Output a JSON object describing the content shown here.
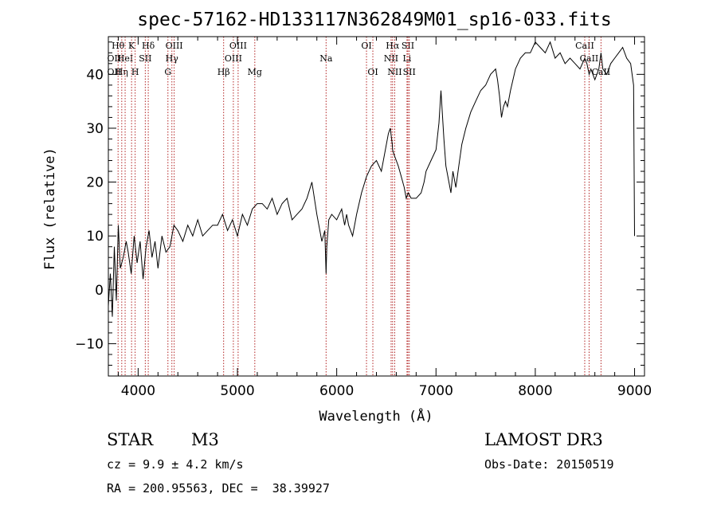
{
  "chart_data": {
    "type": "line",
    "title": "spec-57162-HD133117N362849M01_sp16-033.fits",
    "xlabel": "Wavelength (Å)",
    "ylabel": "Flux (relative)",
    "xlim": [
      3700,
      9100
    ],
    "ylim": [
      -16,
      47
    ],
    "x_ticks": [
      4000,
      5000,
      6000,
      7000,
      8000,
      9000
    ],
    "y_ticks": [
      -10,
      0,
      10,
      20,
      30,
      40
    ],
    "line_color": "#000000",
    "marker_color": "#b22222",
    "series": [
      {
        "name": "flux",
        "x": [
          3700,
          3720,
          3740,
          3760,
          3780,
          3800,
          3820,
          3850,
          3880,
          3900,
          3930,
          3960,
          3990,
          4020,
          4050,
          4080,
          4110,
          4140,
          4170,
          4200,
          4240,
          4280,
          4320,
          4360,
          4400,
          4450,
          4500,
          4550,
          4600,
          4650,
          4700,
          4750,
          4800,
          4850,
          4900,
          4950,
          5000,
          5050,
          5100,
          5150,
          5200,
          5250,
          5300,
          5350,
          5400,
          5450,
          5500,
          5550,
          5600,
          5650,
          5700,
          5750,
          5800,
          5850,
          5880,
          5893,
          5900,
          5920,
          5950,
          6000,
          6050,
          6080,
          6100,
          6120,
          6140,
          6160,
          6200,
          6250,
          6300,
          6350,
          6400,
          6450,
          6500,
          6520,
          6540,
          6560,
          6563,
          6580,
          6600,
          6620,
          6650,
          6680,
          6700,
          6720,
          6750,
          6800,
          6850,
          6880,
          6900,
          6950,
          7000,
          7030,
          7050,
          7080,
          7100,
          7130,
          7150,
          7170,
          7200,
          7230,
          7260,
          7300,
          7350,
          7400,
          7450,
          7500,
          7550,
          7600,
          7620,
          7640,
          7660,
          7680,
          7700,
          7720,
          7750,
          7800,
          7850,
          7900,
          7950,
          8000,
          8050,
          8100,
          8150,
          8200,
          8250,
          8300,
          8350,
          8400,
          8450,
          8498,
          8520,
          8542,
          8560,
          8600,
          8640,
          8662,
          8680,
          8720,
          8760,
          8800,
          8840,
          8880,
          8920,
          8960,
          8990,
          9000
        ],
        "values": [
          -3,
          3,
          -5,
          8,
          -2,
          12,
          4,
          6,
          9,
          7,
          3,
          10,
          5,
          9,
          2,
          8,
          11,
          6,
          9,
          4,
          10,
          7,
          8,
          12,
          11,
          9,
          12,
          10,
          13,
          10,
          11,
          12,
          12,
          14,
          11,
          13,
          10,
          14,
          12,
          15,
          16,
          16,
          15,
          17,
          14,
          16,
          17,
          13,
          14,
          15,
          17,
          20,
          14,
          9,
          11,
          3,
          8,
          13,
          14,
          13,
          15,
          12,
          14,
          12,
          11,
          10,
          14,
          18,
          21,
          23,
          24,
          22,
          27,
          29,
          30,
          27,
          26,
          25,
          24,
          23,
          21,
          19,
          17,
          18,
          17,
          17,
          18,
          20,
          22,
          24,
          26,
          31,
          37,
          28,
          23,
          20,
          18,
          22,
          19,
          23,
          27,
          30,
          33,
          35,
          37,
          38,
          40,
          41,
          39,
          36,
          32,
          34,
          35,
          34,
          37,
          41,
          43,
          44,
          44,
          46,
          45,
          44,
          46,
          43,
          44,
          42,
          43,
          42,
          41,
          43,
          42,
          40,
          41,
          39,
          41,
          44,
          41,
          40,
          42,
          43,
          44,
          45,
          43,
          42,
          38,
          10
        ]
      }
    ],
    "line_markers": [
      {
        "wl": 3798,
        "label": "Hθ",
        "row": 0
      },
      {
        "wl": 3835,
        "label": "Hη",
        "row": 2
      },
      {
        "wl": 3869,
        "label": "HeI",
        "row": 1
      },
      {
        "wl": 3934,
        "label": "K",
        "row": 0
      },
      {
        "wl": 3970,
        "label": "H",
        "row": 2
      },
      {
        "wl": 4072,
        "label": "SII",
        "row": 1
      },
      {
        "wl": 4102,
        "label": "Hδ",
        "row": 0
      },
      {
        "wl": 4300,
        "label": "G",
        "row": 2
      },
      {
        "wl": 4340,
        "label": "Hγ",
        "row": 1
      },
      {
        "wl": 4363,
        "label": "OIII",
        "row": 0
      },
      {
        "wl": 4861,
        "label": "Hβ",
        "row": 2
      },
      {
        "wl": 4959,
        "label": "OIII",
        "row": 1
      },
      {
        "wl": 5007,
        "label": "OIII",
        "row": 0
      },
      {
        "wl": 5175,
        "label": "Mg",
        "row": 2
      },
      {
        "wl": 5893,
        "label": "Na",
        "row": 1
      },
      {
        "wl": 6300,
        "label": "OI",
        "row": 0
      },
      {
        "wl": 6364,
        "label": "OI",
        "row": 2
      },
      {
        "wl": 6548,
        "label": "NII",
        "row": 1
      },
      {
        "wl": 6563,
        "label": "Hα",
        "row": 0
      },
      {
        "wl": 6584,
        "label": "NII",
        "row": 2
      },
      {
        "wl": 6708,
        "label": "Li",
        "row": 1
      },
      {
        "wl": 6717,
        "label": "SII",
        "row": 0
      },
      {
        "wl": 6731,
        "label": "SII",
        "row": 2
      },
      {
        "wl": 8498,
        "label": "CaII",
        "row": 0
      },
      {
        "wl": 8542,
        "label": "CaII",
        "row": 1
      },
      {
        "wl": 8662,
        "label": "CaII",
        "row": 2
      }
    ],
    "extra_labels": [
      {
        "wl": 3727,
        "label": "OII",
        "row": 1
      },
      {
        "wl": 3727,
        "label": "OII",
        "row": 2
      }
    ]
  },
  "info": {
    "object_class": "STAR",
    "subclass": "M3",
    "survey": "LAMOST DR3",
    "cz": "cz = 9.9 ± 4.2 km/s",
    "obs_date": "Obs-Date: 20150519",
    "coords": "RA = 200.95563, DEC =  38.39927"
  }
}
